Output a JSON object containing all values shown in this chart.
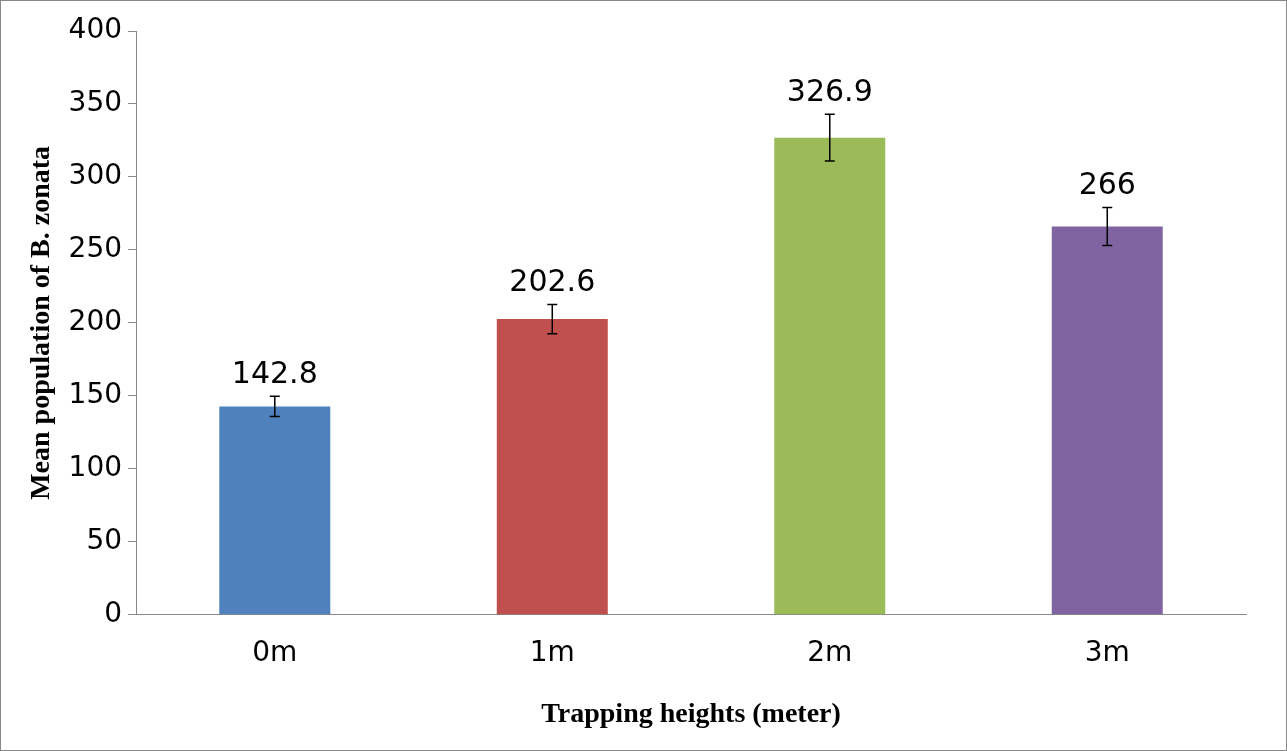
{
  "chart_data": {
    "type": "bar",
    "xlabel": "Trapping heights (meter)",
    "ylabel": "Mean population of B. zonata",
    "categories": [
      "0m",
      "1m",
      "2m",
      "3m"
    ],
    "values": [
      142.8,
      202.6,
      326.9,
      266
    ],
    "colors": [
      "#4f81bd",
      "#c0504d",
      "#9bbb59",
      "#8064a2"
    ],
    "errors": [
      7,
      10,
      16,
      13
    ],
    "ylim": [
      0,
      400
    ],
    "yticks": [
      0,
      50,
      100,
      150,
      200,
      250,
      300,
      350,
      400
    ],
    "data_labels": true,
    "grid": false,
    "legend": false
  }
}
